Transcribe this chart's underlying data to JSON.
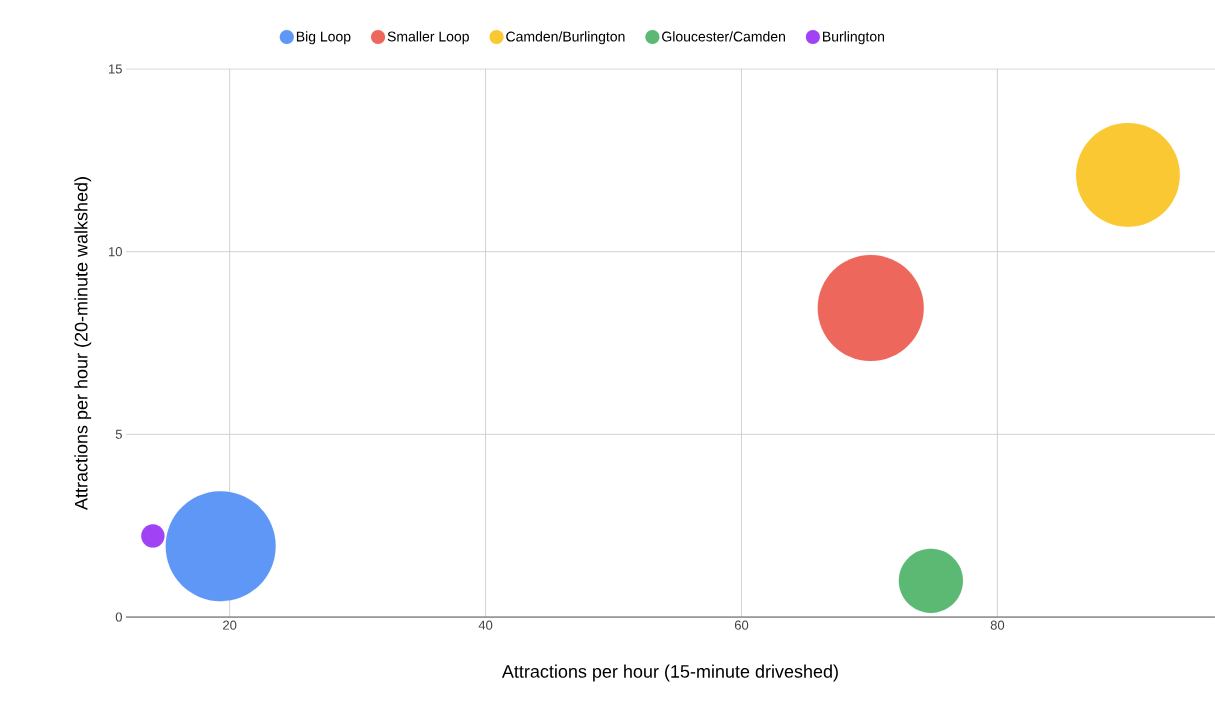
{
  "chart_data": {
    "type": "bubble",
    "xlabel": "Attractions per hour (15-minute driveshed)",
    "ylabel": "Attractions per hour (20-minute walkshed)",
    "series": [
      {
        "name": "Big Loop",
        "color": "#5e97f6",
        "x": [
          19.3
        ],
        "values": [
          1.94
        ],
        "sizes": [
          1
        ]
      },
      {
        "name": "Smaller Loop",
        "color": "#ee675c",
        "x": [
          70.1
        ],
        "values": [
          8.46
        ],
        "sizes": [
          0.93
        ]
      },
      {
        "name": "Camden/Burlington",
        "color": "#fac832",
        "x": [
          90.2
        ],
        "values": [
          12.1
        ],
        "sizes": [
          0.89
        ]
      },
      {
        "name": "Gloucester/Camden",
        "color": "#5bb974",
        "x": [
          74.8
        ],
        "values": [
          0.99
        ],
        "sizes": [
          0.34
        ]
      },
      {
        "name": "Burlington",
        "color": "#a142f4",
        "x": [
          14.0
        ],
        "values": [
          2.22
        ],
        "sizes": [
          0.045
        ]
      }
    ],
    "xlim": [
      11.9,
      97
    ],
    "ylim": [
      0,
      15
    ],
    "xticks": [
      20,
      40,
      60,
      80
    ],
    "yticks": [
      0,
      5,
      10,
      15
    ],
    "grid": true,
    "legend": "top"
  }
}
